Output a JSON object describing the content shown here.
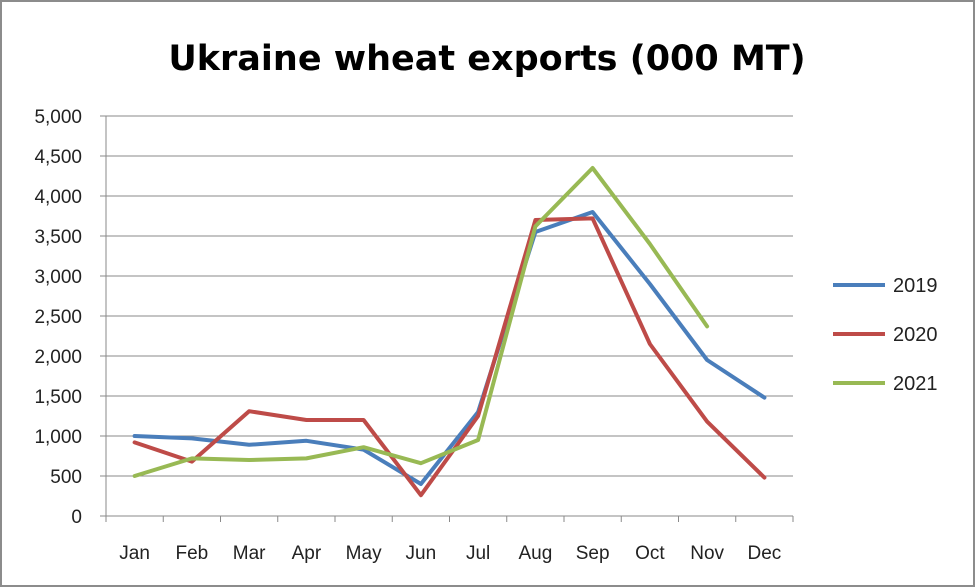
{
  "chart_data": {
    "type": "line",
    "title": "Ukraine wheat exports (000 MT)",
    "xlabel": "",
    "ylabel": "",
    "categories": [
      "Jan",
      "Feb",
      "Mar",
      "Apr",
      "May",
      "Jun",
      "Jul",
      "Aug",
      "Sep",
      "Oct",
      "Nov",
      "Dec"
    ],
    "ylim": [
      0,
      5000
    ],
    "y_ticks": [
      0,
      500,
      1000,
      1500,
      2000,
      2500,
      3000,
      3500,
      4000,
      4500,
      5000
    ],
    "y_tick_labels": [
      "0",
      "500",
      "1,000",
      "1,500",
      "2,000",
      "2,500",
      "3,000",
      "3,500",
      "4,000",
      "4,500",
      "5,000"
    ],
    "grid": "horizontal",
    "legend_position": "right",
    "series": [
      {
        "name": "2019",
        "color": "#4a7ebb",
        "values": [
          1000,
          970,
          890,
          940,
          830,
          400,
          1300,
          3550,
          3800,
          2900,
          1950,
          1480
        ]
      },
      {
        "name": "2020",
        "color": "#be4b48",
        "values": [
          920,
          680,
          1310,
          1200,
          1200,
          260,
          1250,
          3700,
          3720,
          2150,
          1180,
          480
        ]
      },
      {
        "name": "2021",
        "color": "#98b954",
        "values": [
          500,
          720,
          700,
          720,
          860,
          660,
          950,
          3620,
          4350,
          3400,
          2370,
          null
        ]
      }
    ]
  }
}
